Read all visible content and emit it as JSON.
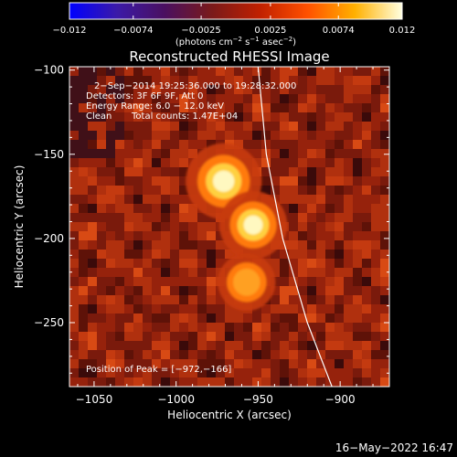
{
  "colorbar": {
    "ticks": [
      "−0.012",
      "−0.0074",
      "−0.0025",
      "0.0025",
      "0.0074",
      "0.012"
    ],
    "units_prefix": "(photons cm",
    "units_exp1": "−2",
    "units_mid": " s",
    "units_exp2": "−1",
    "units_mid2": " asec",
    "units_exp3": "−2",
    "units_suffix": ")",
    "gradient_colors": [
      "#0000ff",
      "#3b1aa8",
      "#4a1060",
      "#7a1a1a",
      "#c02000",
      "#ff5000",
      "#ffb000",
      "#ffffe0"
    ]
  },
  "title": "Reconstructed RHESSI Image",
  "info": {
    "line1": "2−Sep−2014 19:25:36.000 to 19:28:32.000",
    "line2": "Detectors: 3F 6F 9F, Att 0",
    "line3": "Energy Range: 6.0 − 12.0 keV",
    "line4_a": "Clean",
    "line4_b": "Total counts: 1.47E+04",
    "peak": "Position of Peak = [−972,−166]"
  },
  "xlabel": "Heliocentric X (arcsec)",
  "ylabel": "Heliocentric Y (arcsec)",
  "timestamp": "16−May−2022 16:47",
  "chart_data": {
    "type": "heatmap",
    "xlim": [
      -1065,
      -870
    ],
    "ylim": [
      -288,
      -98
    ],
    "x_ticks": [
      -1050,
      -1000,
      -950,
      -900
    ],
    "x_tick_labels": [
      "−1050",
      "−1000",
      "−950",
      "−900"
    ],
    "y_ticks": [
      -100,
      -150,
      -200,
      -250
    ],
    "y_tick_labels": [
      "−100",
      "−150",
      "−200",
      "−250"
    ],
    "sources": [
      {
        "x": -971,
        "y": -166,
        "strength": 1.0
      },
      {
        "x": -953,
        "y": -192,
        "strength": 0.8
      },
      {
        "x": -957,
        "y": -226,
        "strength": 0.55
      }
    ],
    "limb_curve": [
      [
        -950,
        -98
      ],
      [
        -945,
        -150
      ],
      [
        -935,
        -200
      ],
      [
        -920,
        -250
      ],
      [
        -905,
        -288
      ]
    ],
    "peak_position": [
      -972,
      -166
    ],
    "colorbar_range": [
      -0.012,
      0.012
    ]
  }
}
